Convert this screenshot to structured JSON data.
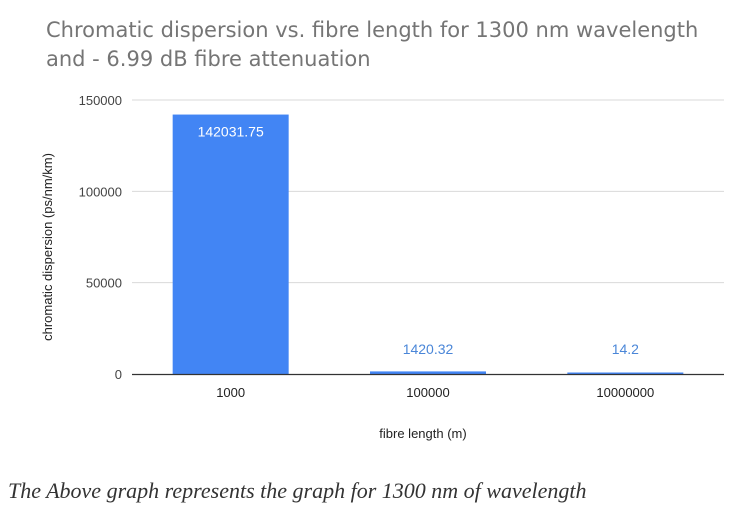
{
  "chart_data": {
    "type": "bar",
    "title": "Chromatic dispersion  vs. fibre length for 1300 nm wavelength and - 6.99 dB fibre attenuation",
    "xlabel": "fibre length (m)",
    "ylabel": "chromatic dispersion (ps/nm/km)",
    "categories": [
      "1000",
      "100000",
      "10000000"
    ],
    "values": [
      142031.75,
      1420.32,
      14.2
    ],
    "data_labels": [
      "142031.75",
      "1420.32",
      "14.2"
    ],
    "ylim": [
      0,
      150000
    ],
    "yticks": [
      0,
      50000,
      100000,
      150000
    ],
    "ytick_labels": [
      "0",
      "50000",
      "100000",
      "150000"
    ],
    "grid": true,
    "legend": "none",
    "bar_color": "#4285f4",
    "label_color_inside": "#ffffff",
    "label_color_outside": "#4a86d8"
  },
  "caption": "The Above graph represents the graph for 1300 nm of wavelength"
}
